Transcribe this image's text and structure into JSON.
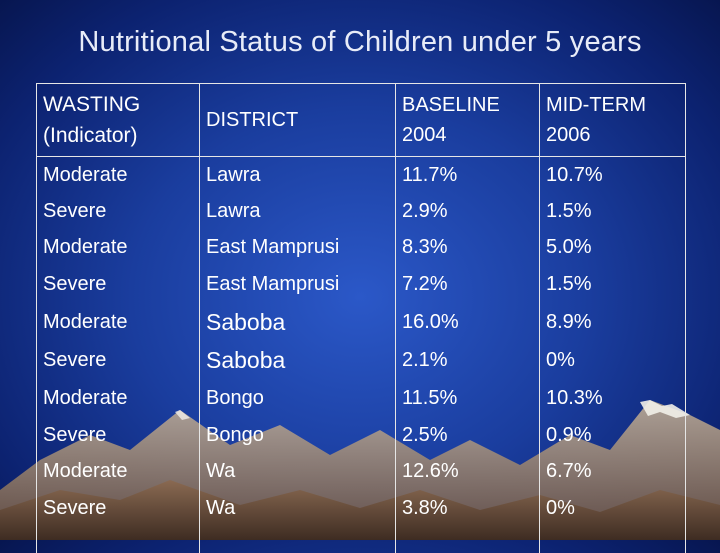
{
  "slide": {
    "title": "Nutritional Status of Children under 5 years"
  },
  "table": {
    "headers": {
      "indicator_line1": "WASTING",
      "indicator_line2": "(Indicator)",
      "district": "DISTRICT",
      "baseline_line1": "BASELINE",
      "baseline_line2": "2004",
      "midterm_line1": "MID-TERM",
      "midterm_line2": "2006"
    },
    "rows": [
      {
        "indicator": "Moderate",
        "district": "Lawra",
        "baseline": "11.7%",
        "midterm": "10.7%"
      },
      {
        "indicator": "Severe",
        "district": "Lawra",
        "baseline": "2.9%",
        "midterm": "1.5%"
      },
      {
        "indicator": "Moderate",
        "district": "East Mamprusi",
        "baseline": "8.3%",
        "midterm": "5.0%"
      },
      {
        "indicator": "Severe",
        "district": "East Mamprusi",
        "baseline": "7.2%",
        "midterm": "1.5%"
      },
      {
        "indicator": "Moderate",
        "district": "Saboba",
        "baseline": "16.0%",
        "midterm": "8.9%"
      },
      {
        "indicator": "Severe",
        "district": "Saboba",
        "baseline": "2.1%",
        "midterm": "0%"
      },
      {
        "indicator": "Moderate",
        "district": "Bongo",
        "baseline": "11.5%",
        "midterm": "10.3%"
      },
      {
        "indicator": "Severe",
        "district": "Bongo",
        "baseline": "2.5%",
        "midterm": "0.9%"
      },
      {
        "indicator": "Moderate",
        "district": "Wa",
        "baseline": "12.6%",
        "midterm": "6.7%"
      },
      {
        "indicator": "Severe",
        "district": "Wa",
        "baseline": "3.8%",
        "midterm": "0%"
      }
    ]
  }
}
